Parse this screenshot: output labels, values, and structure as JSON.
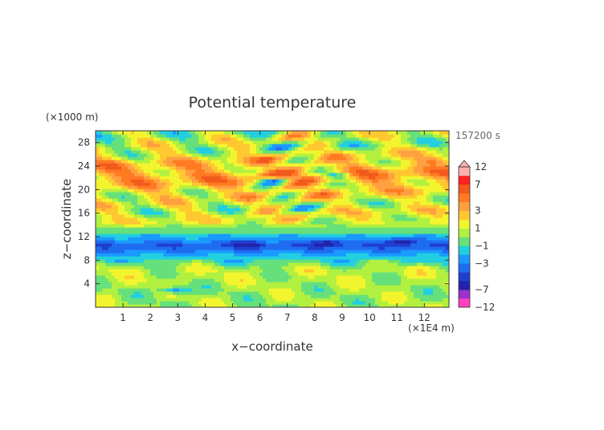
{
  "chart_data": {
    "type": "heatmap",
    "title": "Potential temperature",
    "xlabel": "x−coordinate",
    "ylabel": "z−coordinate",
    "x_unit": "(×1E4 m)",
    "y_unit": "(×1000 m)",
    "time_label": "157200 s",
    "x_range": [
      0,
      12.9
    ],
    "y_range": [
      0,
      30
    ],
    "x_ticks": [
      "1",
      "2",
      "3",
      "4",
      "5",
      "6",
      "7",
      "8",
      "9",
      "10",
      "11",
      "12"
    ],
    "y_ticks": [
      "4",
      "8",
      "12",
      "16",
      "20",
      "24",
      "28"
    ],
    "x_tick_values": [
      1,
      2,
      3,
      4,
      5,
      6,
      7,
      8,
      9,
      10,
      11,
      12
    ],
    "y_tick_values": [
      4,
      8,
      12,
      16,
      20,
      24,
      28
    ],
    "colorbar": {
      "labels": [
        "12",
        "7",
        "3",
        "1",
        "−1",
        "−3",
        "−7",
        "−12"
      ],
      "label_values": [
        12,
        7,
        3,
        1,
        -1,
        -3,
        -7,
        -12
      ],
      "levels": [
        -12,
        -9,
        -7,
        -5,
        -4,
        -3,
        -2,
        -1,
        0,
        1,
        2,
        3,
        4,
        5,
        7,
        9,
        12
      ],
      "colors": [
        "#ff40c0",
        "#9933cc",
        "#2222aa",
        "#1f3fd0",
        "#1e6cf0",
        "#1a9aff",
        "#22cfe0",
        "#66e07a",
        "#b2f040",
        "#f2f52e",
        "#ffc830",
        "#ffa040",
        "#ff7a22",
        "#f25a1c",
        "#ff2020",
        "#ffb0b0"
      ]
    },
    "field_bands": [
      {
        "z_range": [
          0,
          5
        ],
        "value": 0.3
      },
      {
        "z_range": [
          5,
          8
        ],
        "value": 0.7
      },
      {
        "z_range": [
          8,
          13
        ],
        "value": -4
      },
      {
        "z_range": [
          13,
          16
        ],
        "value": 1.2
      },
      {
        "z_range": [
          16,
          20
        ],
        "value": 1.0
      },
      {
        "z_range": [
          20,
          25
        ],
        "value": 3.5
      },
      {
        "z_range": [
          25,
          30
        ],
        "value": 0.6
      }
    ],
    "features": [
      {
        "x": 2.9,
        "z": 3.0,
        "value": -3.5
      },
      {
        "x": 5.6,
        "z": 10.8,
        "value": -6
      },
      {
        "x": 8.5,
        "z": 11.0,
        "value": -6
      },
      {
        "x": 11.2,
        "z": 11.3,
        "value": -6
      },
      {
        "x": 6.5,
        "z": 21.5,
        "value": -2
      },
      {
        "x": 8.8,
        "z": 22.5,
        "value": -1.5
      },
      {
        "x": 0.4,
        "z": 24.5,
        "value": 3
      },
      {
        "x": 12.5,
        "z": 25,
        "value": 4
      }
    ],
    "grid": false
  }
}
